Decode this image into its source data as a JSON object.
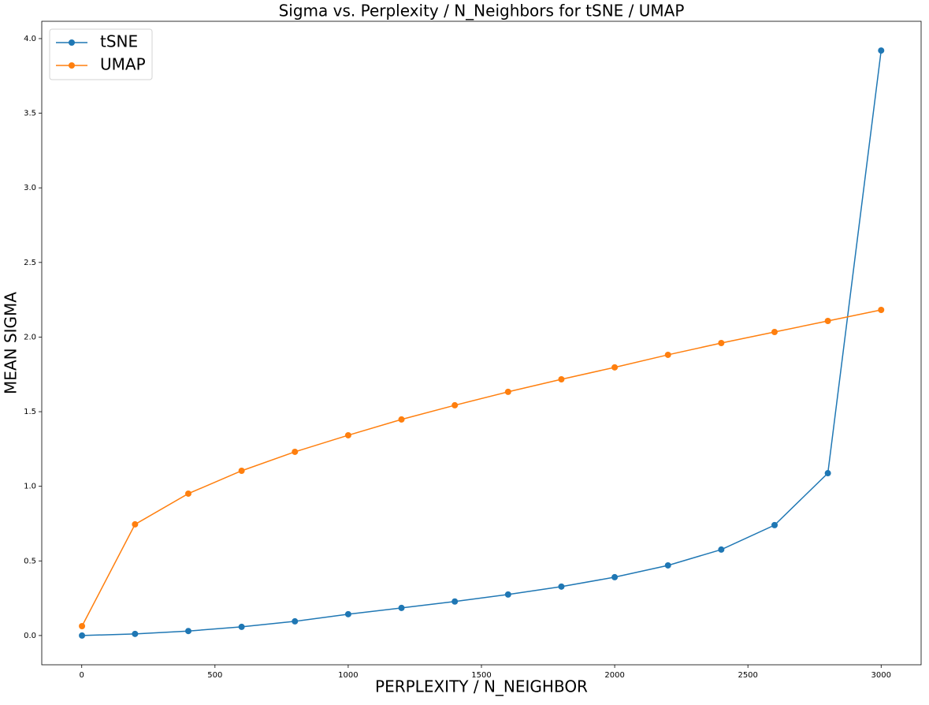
{
  "chart_data": {
    "type": "line",
    "title": "Sigma vs. Perplexity / N_Neighbors for tSNE / UMAP",
    "x_label": "PERPLEXITY / N_NEIGHBOR",
    "y_label": "MEAN SIGMA",
    "x": [
      1,
      200,
      400,
      600,
      800,
      1000,
      1200,
      1400,
      1600,
      1800,
      2000,
      2200,
      2400,
      2600,
      2800,
      3000
    ],
    "series": [
      {
        "name": "tSNE",
        "color": "#1f77b4",
        "values": [
          0.0,
          0.011,
          0.03,
          0.058,
          0.095,
          0.143,
          0.185,
          0.228,
          0.275,
          0.328,
          0.391,
          0.47,
          0.576,
          0.74,
          1.088,
          3.92
        ]
      },
      {
        "name": "UMAP",
        "color": "#ff7f0e",
        "values": [
          0.063,
          0.745,
          0.951,
          1.104,
          1.231,
          1.342,
          1.448,
          1.543,
          1.633,
          1.717,
          1.797,
          1.881,
          1.96,
          2.034,
          2.108,
          2.182
        ]
      }
    ],
    "xlim": [
      -150,
      3150
    ],
    "ylim": [
      -0.196,
      4.116
    ],
    "xticks": [
      0,
      500,
      1000,
      1500,
      2000,
      2500,
      3000
    ],
    "yticks": [
      {
        "value": 0,
        "label": "0.0"
      },
      {
        "value": 0.5,
        "label": "0.5"
      },
      {
        "value": 1,
        "label": "1.0"
      },
      {
        "value": 1.5,
        "label": "1.5"
      },
      {
        "value": 2,
        "label": "2.0"
      },
      {
        "value": 2.5,
        "label": "2.5"
      },
      {
        "value": 3,
        "label": "3.0"
      },
      {
        "value": 3.5,
        "label": "3.5"
      },
      {
        "value": 4,
        "label": "4.0"
      }
    ],
    "grid": false,
    "legend": "upper left"
  }
}
